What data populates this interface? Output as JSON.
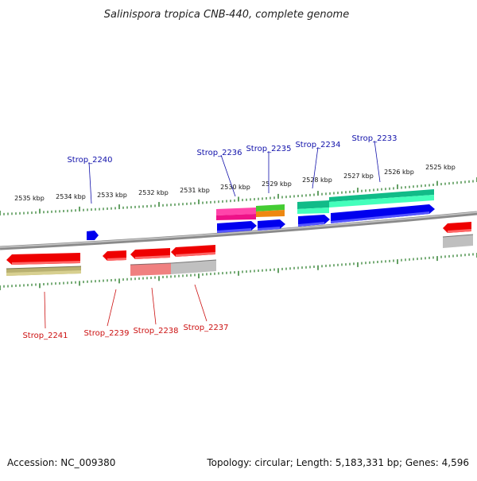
{
  "title": "Salinispora tropica CNB-440, complete genome",
  "footer": {
    "accession": "Accession: NC_009380",
    "summary": "Topology: circular; Length: 5,183,331 bp; Genes: 4,596"
  },
  "scale_labels": [
    "2535 kbp",
    "2534 kbp",
    "2533 kbp",
    "2532 kbp",
    "2531 kbp",
    "2530 kbp",
    "2529 kbp",
    "2528 kbp",
    "2527 kbp",
    "2526 kbp",
    "2525 kbp"
  ],
  "forward_genes": [
    "Strop_2240",
    "Strop_2236",
    "Strop_2235",
    "Strop_2234",
    "Strop_2233"
  ],
  "reverse_genes": [
    "Strop_2241",
    "Strop_2239",
    "Strop_2238",
    "Strop_2237"
  ],
  "colors": {
    "forward_cds": "#0000ee",
    "reverse_cds": "#ee0000",
    "forward_label": "#1010aa",
    "reverse_label": "#cc1010",
    "tick": "#227722",
    "backbone": "#808080"
  }
}
